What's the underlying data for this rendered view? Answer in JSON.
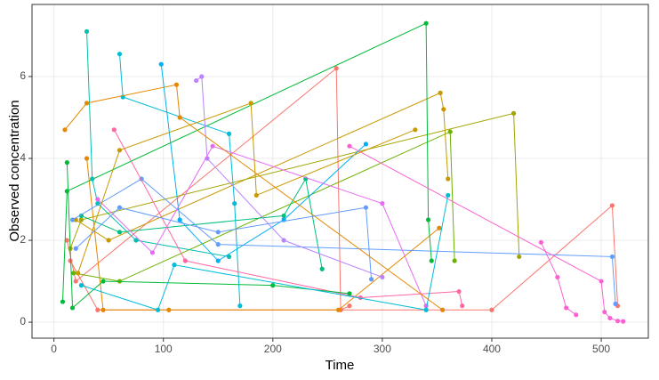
{
  "chart_data": {
    "type": "line",
    "x_label": "Time",
    "y_label": "Observed concentration",
    "xlim": [
      -20,
      543
    ],
    "ylim": [
      -0.39,
      7.76
    ],
    "xticks": [
      0,
      100,
      200,
      300,
      400,
      500
    ],
    "yticks": [
      0,
      2,
      4,
      6
    ],
    "grid": true,
    "series": [
      {
        "color": "#F8766D",
        "x": [
          12,
          20,
          258,
          262,
          270
        ],
        "values": [
          2.0,
          1.0,
          6.2,
          0.3,
          0.4
        ]
      },
      {
        "color": "#F8766D",
        "x": [
          15,
          40,
          400,
          510,
          515
        ],
        "values": [
          1.5,
          0.3,
          0.3,
          2.85,
          0.4
        ]
      },
      {
        "color": "#E58700",
        "x": [
          30,
          45,
          105,
          260,
          352
        ],
        "values": [
          4.0,
          0.3,
          0.3,
          0.3,
          2.3
        ]
      },
      {
        "color": "#C99800",
        "x": [
          20,
          50,
          353,
          356,
          360
        ],
        "values": [
          2.5,
          2.0,
          5.6,
          5.2,
          3.5
        ]
      },
      {
        "color": "#A3A500",
        "x": [
          15,
          25,
          420,
          425
        ],
        "values": [
          1.8,
          2.5,
          5.1,
          1.6
        ]
      },
      {
        "color": "#6BB100",
        "x": [
          18,
          60,
          362,
          366
        ],
        "values": [
          1.2,
          1.0,
          4.65,
          1.5
        ]
      },
      {
        "color": "#00BA38",
        "x": [
          8,
          12,
          340,
          342,
          345
        ],
        "values": [
          0.5,
          3.2,
          7.3,
          2.5,
          1.5
        ]
      },
      {
        "color": "#00BF7D",
        "x": [
          25,
          60,
          210,
          230,
          245
        ],
        "values": [
          2.6,
          2.2,
          2.6,
          3.5,
          1.3
        ]
      },
      {
        "color": "#00C0AF",
        "x": [
          30,
          35,
          40,
          75,
          160
        ],
        "values": [
          7.1,
          3.5,
          2.9,
          2.0,
          1.6
        ]
      },
      {
        "color": "#00BCD8",
        "x": [
          60,
          63,
          160,
          165,
          170
        ],
        "values": [
          6.55,
          5.5,
          4.6,
          2.9,
          0.4
        ]
      },
      {
        "color": "#00B0F6",
        "x": [
          98,
          115,
          150,
          210,
          285
        ],
        "values": [
          6.3,
          2.5,
          1.5,
          2.5,
          4.35
        ]
      },
      {
        "color": "#619CFF",
        "x": [
          17,
          80,
          150,
          510,
          513
        ],
        "values": [
          2.5,
          3.5,
          1.9,
          1.6,
          0.45
        ]
      },
      {
        "color": "#B983FF",
        "x": [
          130,
          135,
          140,
          210,
          300
        ],
        "values": [
          5.9,
          6.0,
          4.0,
          2.0,
          1.1
        ]
      },
      {
        "color": "#E76BF3",
        "x": [
          40,
          90,
          145,
          300,
          340
        ],
        "values": [
          3.0,
          1.7,
          4.3,
          2.9,
          0.4
        ]
      },
      {
        "color": "#FD61D1",
        "x": [
          445,
          460,
          468,
          477
        ],
        "values": [
          1.95,
          1.1,
          0.35,
          0.18
        ]
      },
      {
        "color": "#FD61D1",
        "x": [
          270,
          500,
          503,
          508,
          515,
          520
        ],
        "values": [
          4.3,
          1.0,
          0.25,
          0.1,
          0.03,
          0.02
        ]
      },
      {
        "color": "#FF67A4",
        "x": [
          55,
          120,
          280,
          370,
          373
        ],
        "values": [
          4.7,
          1.5,
          0.6,
          0.75,
          0.4
        ]
      },
      {
        "color": "#E58700",
        "x": [
          10,
          30,
          112,
          115,
          355
        ],
        "values": [
          4.7,
          5.35,
          5.8,
          5.0,
          0.3
        ]
      },
      {
        "color": "#00BA38",
        "x": [
          12,
          17,
          45,
          200,
          270
        ],
        "values": [
          3.9,
          0.35,
          1.0,
          0.9,
          0.7
        ]
      },
      {
        "color": "#619CFF",
        "x": [
          20,
          60,
          150,
          285,
          290
        ],
        "values": [
          1.8,
          2.8,
          2.2,
          2.8,
          1.05
        ]
      },
      {
        "color": "#00BCD8",
        "x": [
          25,
          95,
          110,
          340,
          360
        ],
        "values": [
          0.9,
          0.3,
          1.4,
          0.3,
          3.1
        ]
      },
      {
        "color": "#C99800",
        "x": [
          22,
          60,
          180,
          185,
          330
        ],
        "values": [
          1.2,
          4.2,
          5.35,
          3.1,
          4.7
        ]
      }
    ]
  }
}
